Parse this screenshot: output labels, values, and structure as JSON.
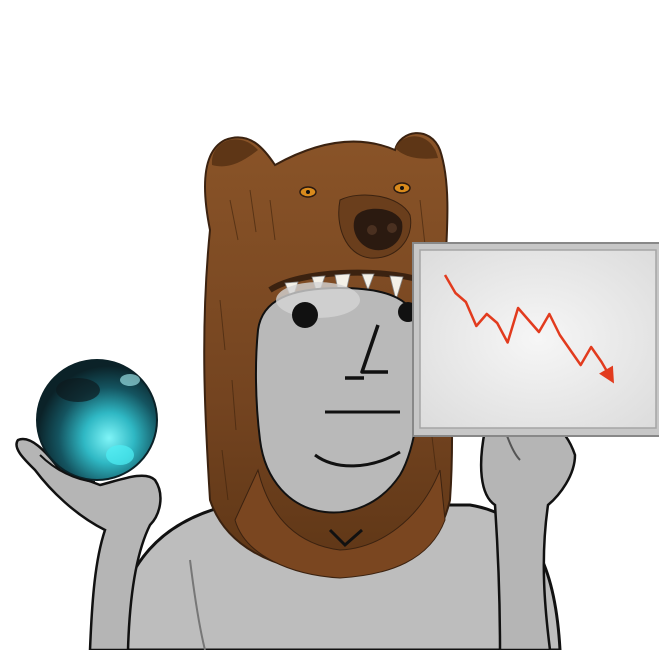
{
  "scene": {
    "icons": [
      "bear-head-hat-icon",
      "crystal-ball-icon",
      "down-trend-chart-icon",
      "npc-face-icon"
    ],
    "colors": {
      "bear_fur": "#7a4a22",
      "bear_fur_dark": "#4e2c10",
      "bear_nose": "#2b1a10",
      "bear_eye": "#d98a1c",
      "skin": "#b5b5b5",
      "skin_light": "#d8d8d8",
      "outline": "#111111",
      "orb_dark": "#0f2b33",
      "orb_light": "#3ee3ea",
      "sign_bg": "#ececec",
      "sign_frame": "#b9b9b9",
      "trend_line": "#e23b1e"
    }
  },
  "chart_sign": {
    "trend_values": [
      100,
      88,
      82,
      66,
      74,
      68,
      55,
      78,
      70,
      62,
      74,
      60,
      50,
      40,
      52,
      42,
      30
    ]
  }
}
